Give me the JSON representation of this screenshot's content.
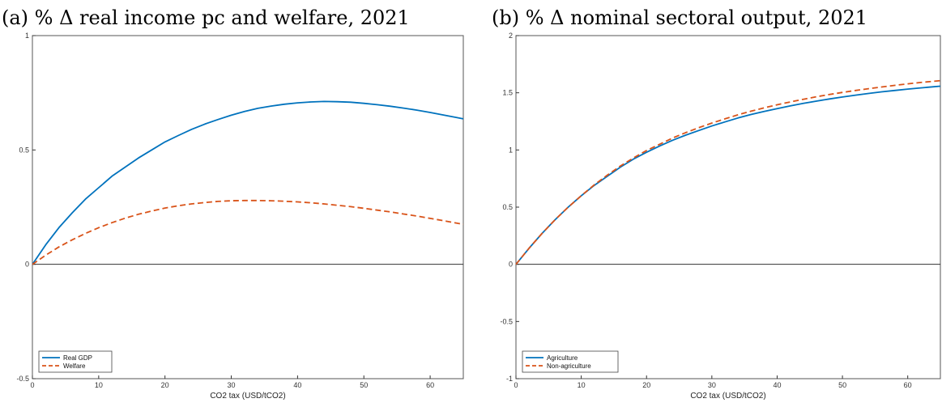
{
  "chart_data": [
    {
      "type": "line",
      "title": "(a) % Δ real income pc and welfare, 2021",
      "xlabel": "CO2 tax (USD/tCO2)",
      "ylabel": "",
      "xlim": [
        0,
        65
      ],
      "ylim": [
        -0.5,
        1
      ],
      "xticks": [
        0,
        10,
        20,
        30,
        40,
        50,
        60
      ],
      "yticks": [
        -0.5,
        0,
        0.5,
        1
      ],
      "legend_position": "bottom-left",
      "grid": false,
      "series": [
        {
          "name": "Real GDP",
          "color": "#0072bd",
          "style": "solid",
          "x": [
            0,
            2,
            4,
            6,
            8,
            10,
            12,
            14,
            16,
            18,
            20,
            22,
            24,
            26,
            28,
            30,
            32,
            34,
            36,
            38,
            40,
            42,
            44,
            46,
            48,
            50,
            52,
            54,
            56,
            58,
            60,
            62,
            64,
            65
          ],
          "y": [
            0,
            0.085,
            0.16,
            0.225,
            0.285,
            0.335,
            0.385,
            0.425,
            0.465,
            0.5,
            0.535,
            0.563,
            0.59,
            0.613,
            0.633,
            0.652,
            0.668,
            0.682,
            0.692,
            0.7,
            0.706,
            0.71,
            0.712,
            0.711,
            0.709,
            0.704,
            0.698,
            0.691,
            0.683,
            0.674,
            0.664,
            0.653,
            0.642,
            0.636
          ]
        },
        {
          "name": "Welfare",
          "color": "#d95319",
          "style": "dashed",
          "x": [
            0,
            2,
            4,
            6,
            8,
            10,
            12,
            14,
            16,
            18,
            20,
            22,
            24,
            26,
            28,
            30,
            32,
            34,
            36,
            38,
            40,
            42,
            44,
            46,
            48,
            50,
            52,
            54,
            56,
            58,
            60,
            62,
            64,
            65
          ],
          "y": [
            0,
            0.04,
            0.076,
            0.107,
            0.135,
            0.16,
            0.182,
            0.202,
            0.219,
            0.233,
            0.246,
            0.256,
            0.264,
            0.27,
            0.275,
            0.278,
            0.279,
            0.279,
            0.278,
            0.276,
            0.273,
            0.269,
            0.264,
            0.258,
            0.252,
            0.245,
            0.237,
            0.229,
            0.22,
            0.211,
            0.201,
            0.191,
            0.18,
            0.175
          ]
        }
      ]
    },
    {
      "type": "line",
      "title": "(b) % Δ nominal sectoral output, 2021",
      "xlabel": "CO2 tax (USD/tCO2)",
      "ylabel": "",
      "xlim": [
        0,
        65
      ],
      "ylim": [
        -1,
        2
      ],
      "xticks": [
        0,
        10,
        20,
        30,
        40,
        50,
        60
      ],
      "yticks": [
        -1,
        -0.5,
        0,
        0.5,
        1,
        1.5,
        2
      ],
      "legend_position": "bottom-left",
      "grid": false,
      "series": [
        {
          "name": "Agriculture",
          "color": "#0072bd",
          "style": "solid",
          "x": [
            0,
            2,
            4,
            6,
            8,
            10,
            12,
            14,
            16,
            18,
            20,
            22,
            24,
            26,
            28,
            30,
            32,
            34,
            36,
            38,
            40,
            42,
            44,
            46,
            48,
            50,
            52,
            54,
            56,
            58,
            60,
            62,
            64,
            65
          ],
          "y": [
            0,
            0.14,
            0.27,
            0.39,
            0.5,
            0.6,
            0.69,
            0.77,
            0.85,
            0.92,
            0.98,
            1.035,
            1.085,
            1.13,
            1.17,
            1.21,
            1.245,
            1.28,
            1.31,
            1.337,
            1.362,
            1.385,
            1.407,
            1.427,
            1.446,
            1.463,
            1.479,
            1.494,
            1.508,
            1.52,
            1.532,
            1.543,
            1.553,
            1.558
          ]
        },
        {
          "name": "Non-agriculture",
          "color": "#d95319",
          "style": "dashed",
          "x": [
            0,
            2,
            4,
            6,
            8,
            10,
            12,
            14,
            16,
            18,
            20,
            22,
            24,
            26,
            28,
            30,
            32,
            34,
            36,
            38,
            40,
            42,
            44,
            46,
            48,
            50,
            52,
            54,
            56,
            58,
            60,
            62,
            64,
            65
          ],
          "y": [
            0,
            0.14,
            0.27,
            0.39,
            0.5,
            0.6,
            0.695,
            0.78,
            0.86,
            0.93,
            0.995,
            1.05,
            1.105,
            1.152,
            1.195,
            1.235,
            1.272,
            1.307,
            1.339,
            1.368,
            1.395,
            1.42,
            1.443,
            1.465,
            1.485,
            1.503,
            1.52,
            1.536,
            1.551,
            1.565,
            1.578,
            1.59,
            1.601,
            1.606
          ]
        }
      ]
    }
  ]
}
